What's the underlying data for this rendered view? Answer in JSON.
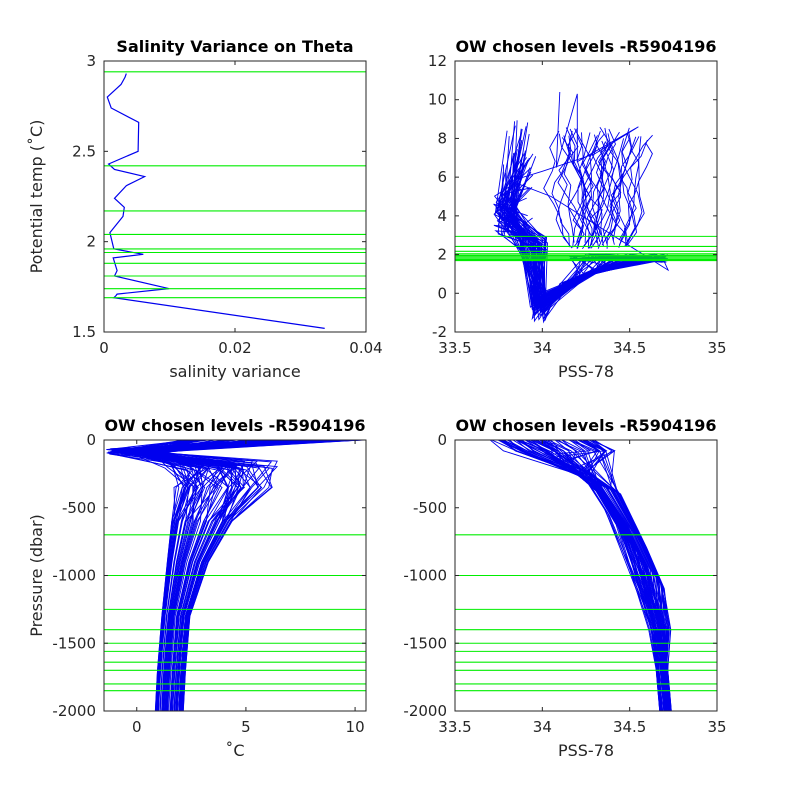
{
  "figure": {
    "colors": {
      "profile": "#0000ee",
      "level": "#00ee00",
      "axis": "#262626",
      "background": "#ffffff"
    }
  },
  "chart_data": [
    {
      "type": "line",
      "title": "Salinity Variance on Theta",
      "xlabel": "salinity variance",
      "ylabel": "Potential temp (˚C)",
      "xlim": [
        0,
        0.04
      ],
      "ylim": [
        1.5,
        3
      ],
      "xticks": [
        "0",
        "0.02",
        "0.04"
      ],
      "yticks": [
        "1.5",
        "2",
        "2.5",
        "3"
      ],
      "series": [
        {
          "x": [
            0.0034,
            0.0032,
            0.0026,
            0.002,
            0.0005,
            0.0011,
            0.0053,
            0.0052,
            0.0007,
            0.0016,
            0.0062,
            0.0034,
            0.0016,
            0.0031,
            0.0029,
            0.0009,
            0.0015,
            0.006,
            0.0014,
            0.002,
            0.0016,
            0.0099,
            0.002,
            0.0018,
            0.0015,
            0.0337
          ],
          "y": [
            2.93,
            2.91,
            2.87,
            2.85,
            2.8,
            2.74,
            2.66,
            2.5,
            2.43,
            2.4,
            2.36,
            2.31,
            2.24,
            2.19,
            2.14,
            2.05,
            1.96,
            1.93,
            1.91,
            1.84,
            1.81,
            1.74,
            1.71,
            1.7,
            1.69,
            1.52
          ]
        }
      ],
      "chosen_levels_theta": [
        2.94,
        2.42,
        2.17,
        2.04,
        1.96,
        1.94,
        1.88,
        1.81,
        1.74,
        1.69
      ]
    },
    {
      "type": "line",
      "title": "OW chosen levels -R5904196",
      "xlabel": "PSS-78",
      "ylabel": "",
      "xlim": [
        33.5,
        35
      ],
      "ylim": [
        -2,
        12
      ],
      "xticks": [
        "33.5",
        "34",
        "34.5",
        "35"
      ],
      "yticks": [
        "-2",
        "0",
        "2",
        "4",
        "6",
        "8",
        "10",
        "12"
      ],
      "chosen_levels_theta": [
        2.94,
        2.42,
        2.17,
        2.04,
        1.96,
        1.94,
        1.88,
        1.81,
        1.74,
        1.69
      ]
    },
    {
      "type": "line",
      "title": "OW chosen levels -R5904196",
      "xlabel": "˚C",
      "ylabel": "Pressure (dbar)",
      "xlim": [
        -1.5,
        10.5
      ],
      "ylim": [
        -2000,
        0
      ],
      "xticks": [
        "0",
        "5",
        "10"
      ],
      "yticks": [
        "-2000",
        "-1500",
        "-1000",
        "-500",
        "0"
      ],
      "chosen_levels_pressure": [
        -700,
        -1000,
        -1250,
        -1400,
        -1500,
        -1560,
        -1640,
        -1700,
        -1800,
        -1850
      ]
    },
    {
      "type": "line",
      "title": "OW chosen levels -R5904196",
      "xlabel": "PSS-78",
      "ylabel": "",
      "xlim": [
        33.5,
        35
      ],
      "ylim": [
        -2000,
        0
      ],
      "xticks": [
        "33.5",
        "34",
        "34.5",
        "35"
      ],
      "yticks": [
        "-2000",
        "-1500",
        "-1000",
        "-500",
        "0"
      ],
      "chosen_levels_pressure": [
        -700,
        -1000,
        -1250,
        -1400,
        -1500,
        -1560,
        -1640,
        -1700,
        -1800,
        -1850
      ]
    }
  ]
}
